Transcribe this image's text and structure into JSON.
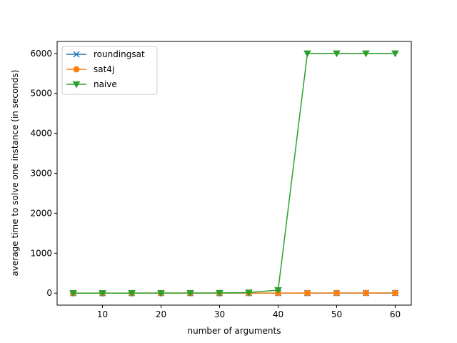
{
  "chart_data": {
    "type": "line",
    "xlabel": "number of arguments",
    "ylabel": "average time to solve one instance (in seconds)",
    "xlim": [
      2.25,
      62.75
    ],
    "ylim": [
      -300,
      6300
    ],
    "xticks": [
      10,
      20,
      30,
      40,
      50,
      60
    ],
    "yticks": [
      0,
      1000,
      2000,
      3000,
      4000,
      5000,
      6000
    ],
    "grid": false,
    "legend_position": "top-left",
    "x": [
      5,
      10,
      15,
      20,
      25,
      30,
      35,
      40,
      45,
      50,
      55,
      60
    ],
    "series": [
      {
        "name": "roundingsat",
        "color": "#1f77b4",
        "marker": "x",
        "values": [
          0.1,
          0.1,
          0.2,
          0.2,
          0.3,
          0.4,
          0.5,
          0.6,
          0.8,
          1.0,
          1.2,
          1.5
        ]
      },
      {
        "name": "sat4j",
        "color": "#ff7f0e",
        "marker": "circle",
        "values": [
          1,
          1,
          1,
          1,
          1,
          1,
          1,
          2,
          2,
          3,
          4,
          6
        ]
      },
      {
        "name": "naive",
        "color": "#2ca02c",
        "marker": "triangle-down",
        "values": [
          0.1,
          0.2,
          0.5,
          1,
          2,
          5,
          15,
          75,
          6000,
          6000,
          6000,
          6000
        ]
      }
    ]
  }
}
